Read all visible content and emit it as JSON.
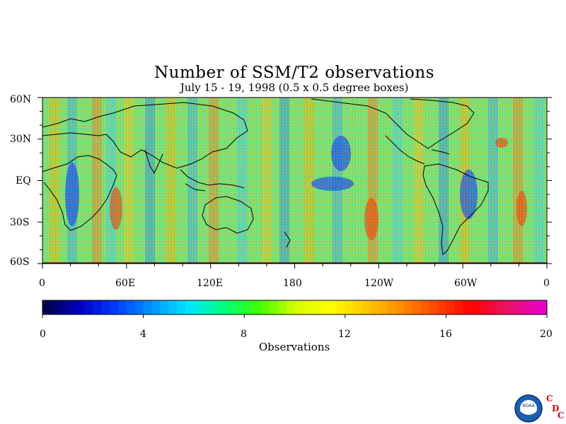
{
  "title": "Number of SSM/T2 observations",
  "subtitle": "July 15 - 19, 1998 (0.5 x 0.5 degree boxes)",
  "map": {
    "lat_labels": [
      "60N",
      "30N",
      "EQ",
      "30S",
      "60S"
    ],
    "lon_labels": [
      "0",
      "60E",
      "120E",
      "180",
      "120W",
      "60W",
      "0"
    ],
    "lat_range": [
      -60,
      60
    ],
    "lon_range": [
      0,
      360
    ]
  },
  "colorbar": {
    "label": "Observations",
    "ticks": [
      "0",
      "4",
      "8",
      "12",
      "16",
      "20"
    ],
    "range": [
      0,
      20
    ],
    "colormap": [
      "#000050",
      "#0000c8",
      "#0040ff",
      "#0096ff",
      "#00e6ff",
      "#00ff80",
      "#40ff00",
      "#d2ff00",
      "#ffff00",
      "#ffc800",
      "#ff8c00",
      "#ff4600",
      "#ff0000",
      "#e61464",
      "#e600c8"
    ]
  },
  "logo": {
    "agency_mark": "NOAA",
    "cdc_letters": [
      "C",
      "D",
      "C"
    ],
    "cdc_color": "#e00000"
  }
}
